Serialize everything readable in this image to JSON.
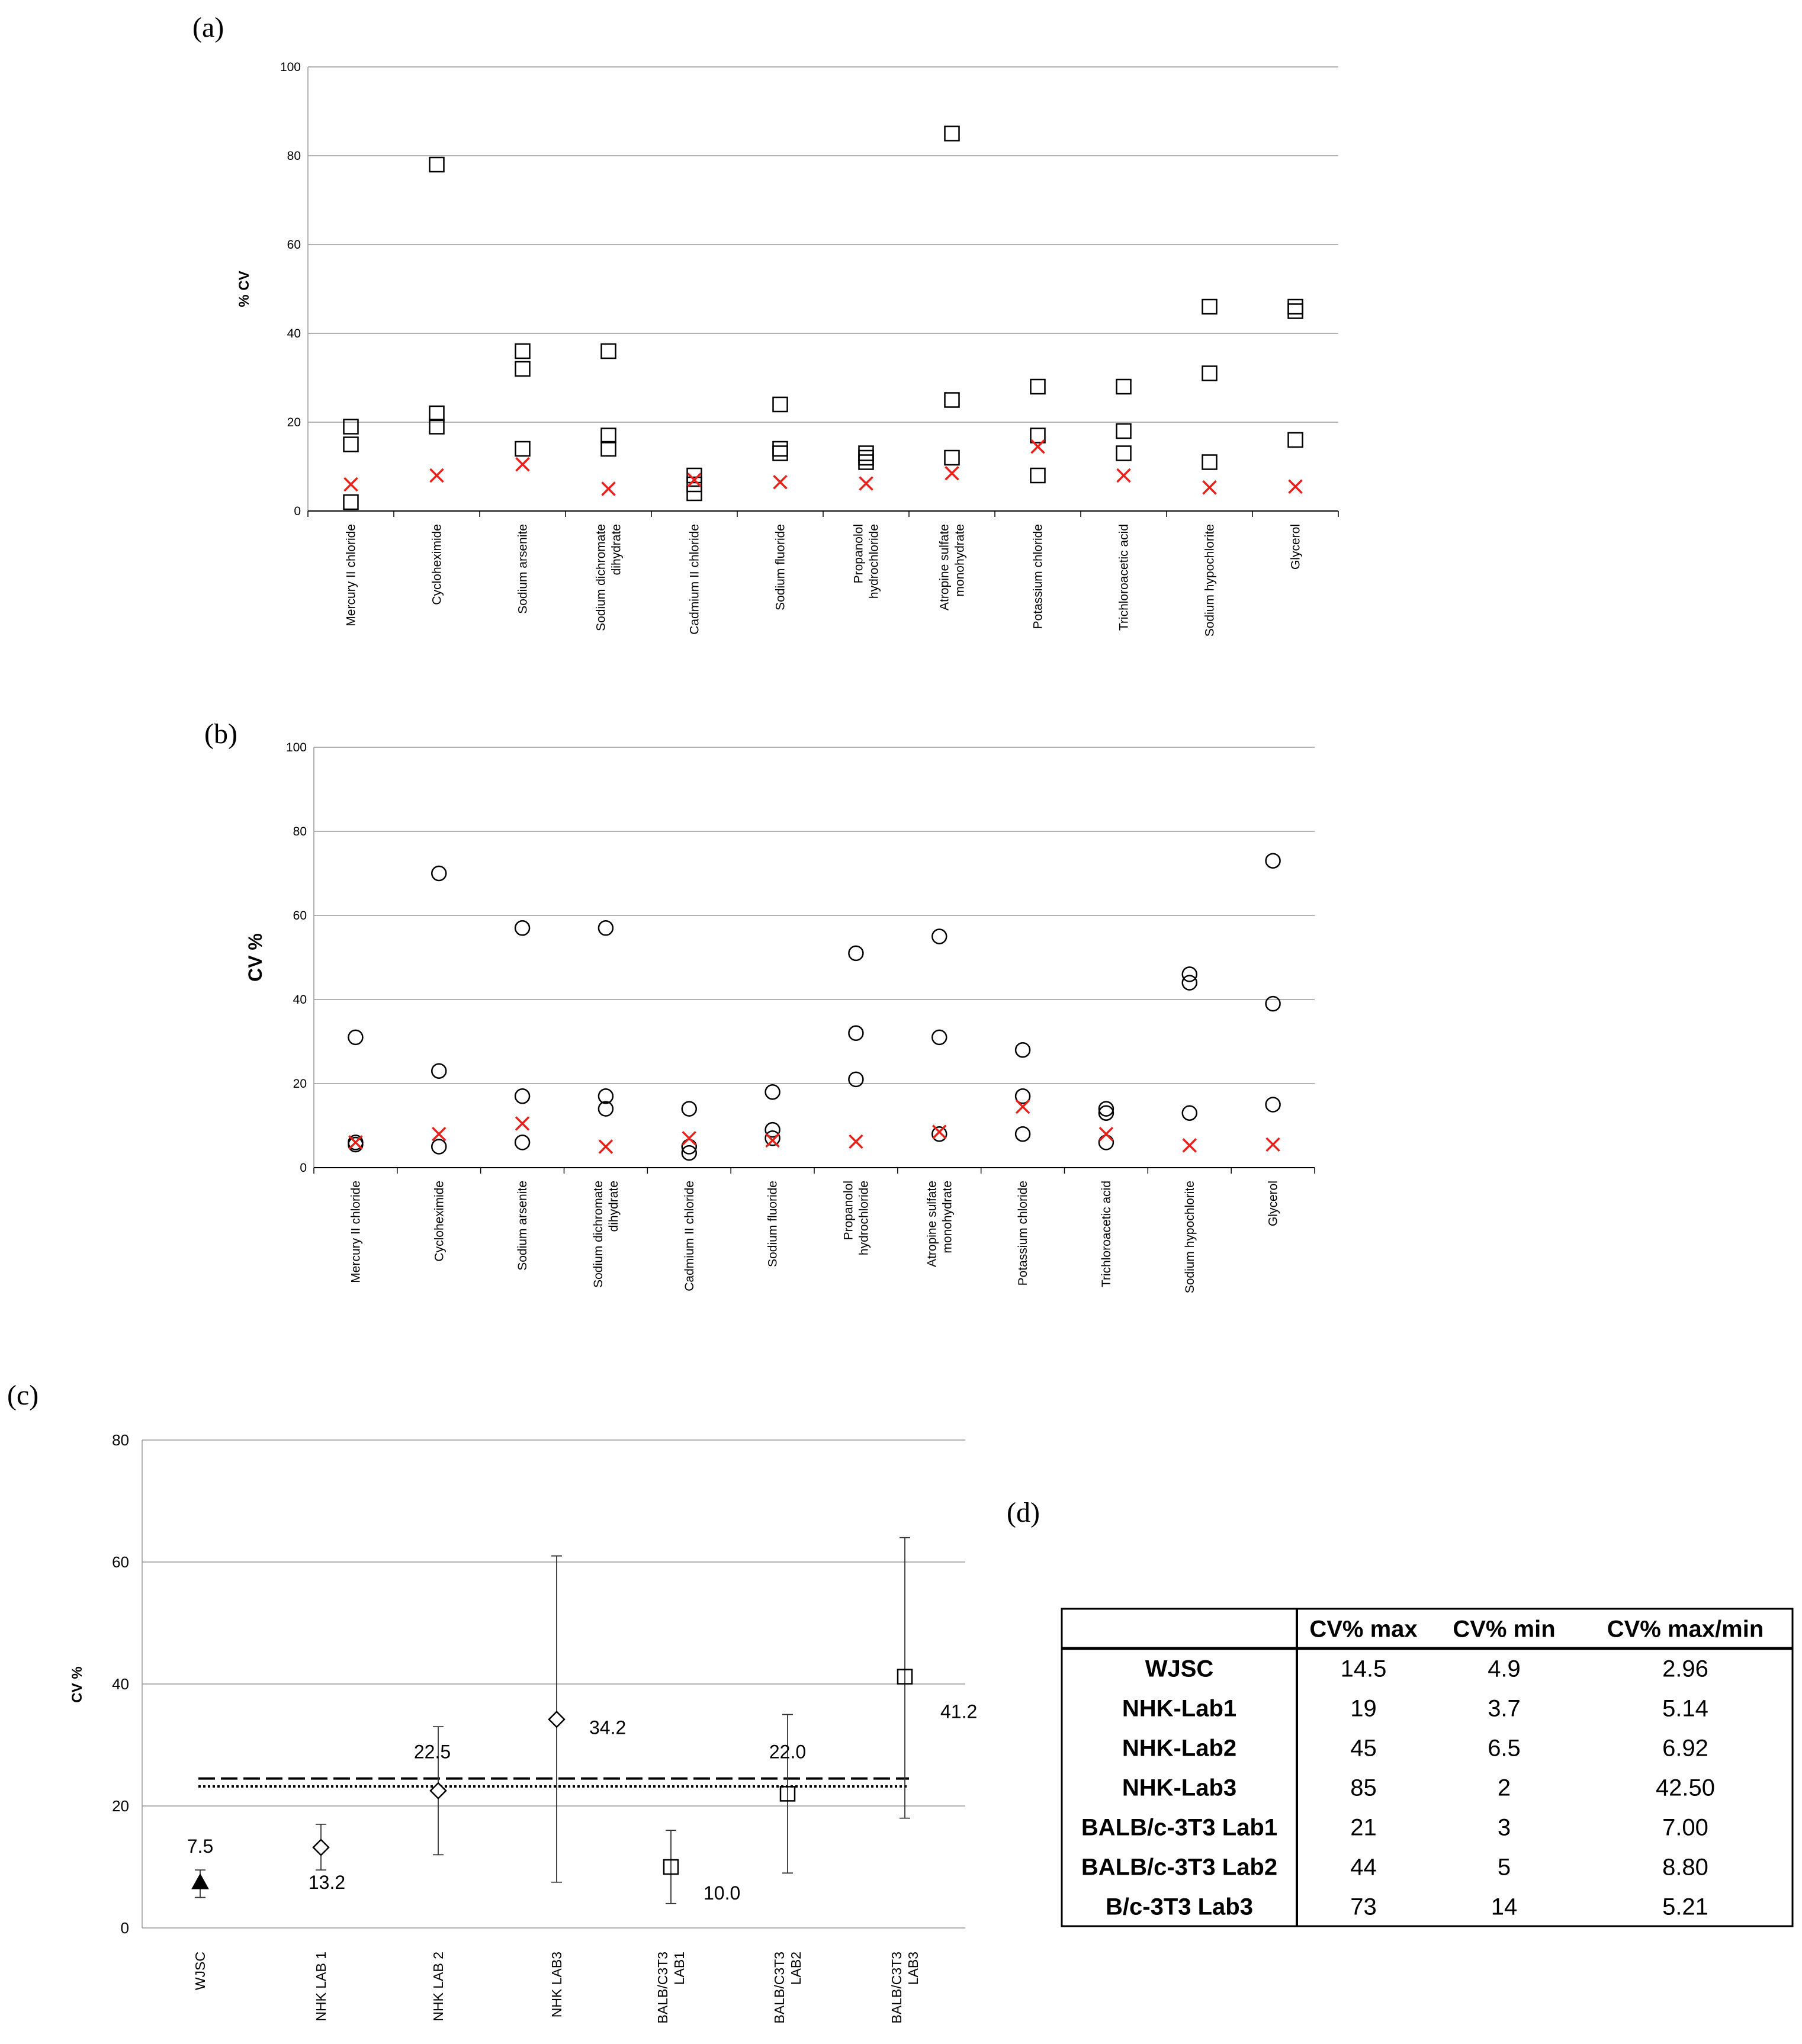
{
  "chart_data": [
    {
      "panel": "(a)",
      "type": "scatter",
      "ylabel": "% CV",
      "ylim": [
        0,
        100
      ],
      "yticks": [
        0,
        20,
        40,
        60,
        80,
        100
      ],
      "grid": true,
      "categories": [
        "Mercury II chloride",
        "Cycloheximide",
        "Sodium arsenite",
        "Sodium dichromate|dihydrate",
        "Cadmium II chloride",
        "Sodium fluoride",
        "Propanolol|hydrochloride",
        "Atropine sulfate|monohydrate",
        "Potassium chloride",
        "Trichloroacetic acid",
        "Sodium hypochlorite",
        "Glycerol"
      ],
      "series": [
        {
          "marker": "square",
          "values": [
            [
              19,
              15,
              2
            ],
            [
              78,
              22,
              19
            ],
            [
              36,
              32,
              14
            ],
            [
              36,
              17,
              14
            ],
            [
              8,
              6,
              4
            ],
            [
              24,
              14,
              13
            ],
            [
              13,
              12,
              11
            ],
            [
              85,
              25,
              12
            ],
            [
              28,
              17,
              8
            ],
            [
              28,
              18,
              13
            ],
            [
              46,
              31,
              11
            ],
            [
              46,
              45,
              16
            ]
          ]
        },
        {
          "marker": "x",
          "color": "#e8201a",
          "values": [
            [
              6
            ],
            [
              8
            ],
            [
              10.5
            ],
            [
              5
            ],
            [
              7
            ],
            [
              6.5
            ],
            [
              6.2
            ],
            [
              8.5
            ],
            [
              14.5
            ],
            [
              8
            ],
            [
              5.3
            ],
            [
              5.5
            ]
          ]
        }
      ]
    },
    {
      "panel": "(b)",
      "type": "scatter",
      "ylabel": "CV %",
      "ylim": [
        0,
        100
      ],
      "yticks": [
        0,
        20,
        40,
        60,
        80,
        100
      ],
      "grid": true,
      "categories": [
        "Mercury II chloride",
        "Cycloheximide",
        "Sodium arsenite",
        "Sodium dichromate|dihydrate",
        "Cadmium II chloride",
        "Sodium fluoride",
        "Propanolol|hydrochloride",
        "Atropine sulfate|monohydrate",
        "Potassium chloride",
        "Trichloroacetic acid",
        "Sodium hypochlorite",
        "Glycerol"
      ],
      "series": [
        {
          "marker": "circle",
          "values": [
            [
              31,
              6,
              5.5
            ],
            [
              70,
              23,
              5
            ],
            [
              57,
              17,
              6
            ],
            [
              57,
              17,
              14
            ],
            [
              14,
              5,
              3.5
            ],
            [
              18,
              9,
              7
            ],
            [
              51,
              32,
              21
            ],
            [
              55,
              31,
              8
            ],
            [
              28,
              17,
              8
            ],
            [
              14,
              13,
              6
            ],
            [
              46,
              44,
              13
            ],
            [
              73,
              39,
              15
            ]
          ]
        },
        {
          "marker": "x",
          "color": "#e8201a",
          "values": [
            [
              6
            ],
            [
              8
            ],
            [
              10.5
            ],
            [
              5
            ],
            [
              7
            ],
            [
              6.5
            ],
            [
              6.2
            ],
            [
              8.5
            ],
            [
              14.5
            ],
            [
              8
            ],
            [
              5.3
            ],
            [
              5.5
            ]
          ]
        }
      ]
    },
    {
      "panel": "(c)",
      "type": "scatter",
      "ylabel": "CV %",
      "ylim": [
        0,
        80
      ],
      "yticks": [
        0,
        20,
        40,
        60,
        80
      ],
      "grid": true,
      "categories": [
        "WJSC",
        "NHK LAB 1",
        "NHK LAB 2",
        "NHK LAB3",
        "BALB/C3T3|LAB1",
        "BALB/C3T3|LAB2",
        "BALB/C3T3|LAB3"
      ],
      "points": [
        {
          "value": 7.5,
          "err_low": 5,
          "err_high": 9.5,
          "marker": "triangle",
          "label": "7.5"
        },
        {
          "value": 13.2,
          "err_low": 9.5,
          "err_high": 17,
          "marker": "diamond",
          "label": "13.2"
        },
        {
          "value": 22.5,
          "err_low": 12,
          "err_high": 33,
          "marker": "diamond",
          "label": "22.5"
        },
        {
          "value": 34.2,
          "err_low": 7.5,
          "err_high": 61,
          "marker": "diamond",
          "label": "34.2"
        },
        {
          "value": 10.0,
          "err_low": 4,
          "err_high": 16,
          "marker": "square",
          "label": "10.0"
        },
        {
          "value": 22.0,
          "err_low": 9,
          "err_high": 35,
          "marker": "square",
          "label": "22.0"
        },
        {
          "value": 41.2,
          "err_low": 18,
          "err_high": 64,
          "marker": "square",
          "label": "41.2"
        }
      ],
      "reference_lines": [
        {
          "style": "dashed",
          "value": 24.5
        },
        {
          "style": "dotted",
          "value": 23.2
        }
      ]
    },
    {
      "panel": "(d)",
      "type": "table",
      "headers": [
        "",
        "CV% max",
        "CV% min",
        "CV% max/min"
      ],
      "rows": [
        [
          "WJSC",
          "14.5",
          "4.9",
          "2.96"
        ],
        [
          "NHK-Lab1",
          "19",
          "3.7",
          "5.14"
        ],
        [
          "NHK-Lab2",
          "45",
          "6.5",
          "6.92"
        ],
        [
          "NHK-Lab3",
          "85",
          "2",
          "42.50"
        ],
        [
          "BALB/c-3T3 Lab1",
          "21",
          "3",
          "7.00"
        ],
        [
          "BALB/c-3T3 Lab2",
          "44",
          "5",
          "8.80"
        ],
        [
          "B/c-3T3 Lab3",
          "73",
          "14",
          "5.21"
        ]
      ]
    }
  ]
}
